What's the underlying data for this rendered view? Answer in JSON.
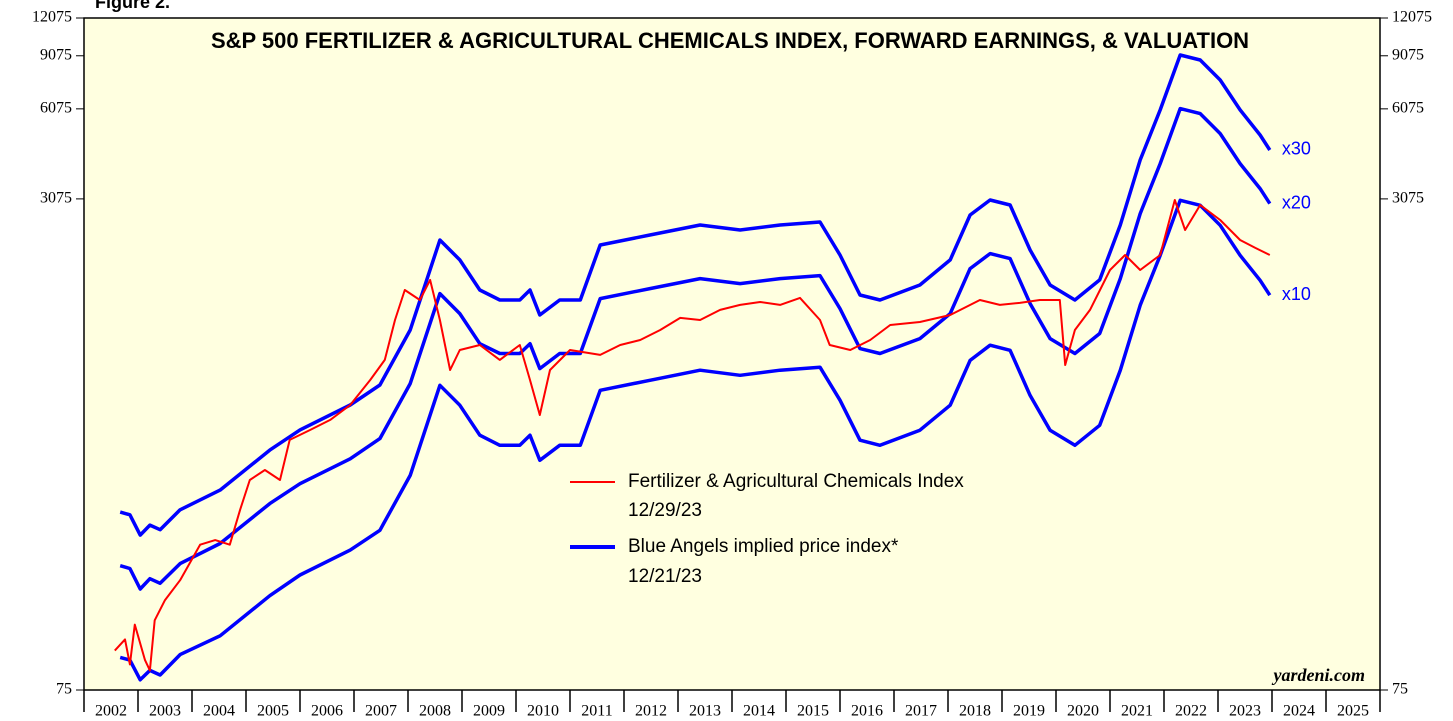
{
  "chart_data": {
    "type": "line",
    "figure_label": "Figure 2.",
    "title": "S&P 500 FERTILIZER & AGRICULTURAL CHEMICALS INDEX, FORWARD EARNINGS, & VALUATION",
    "source": "yardeni.com",
    "log_scale": true,
    "ylim": [
      75,
      12075
    ],
    "yticks": [
      75,
      3075,
      6075,
      9075,
      12075
    ],
    "xlim": [
      2002,
      2026
    ],
    "xticks": [
      2002,
      2003,
      2004,
      2005,
      2006,
      2007,
      2008,
      2009,
      2010,
      2011,
      2012,
      2013,
      2014,
      2015,
      2016,
      2017,
      2018,
      2019,
      2020,
      2021,
      2022,
      2023,
      2024,
      2025,
      2026
    ],
    "categories": [
      "2002",
      "2003",
      "2004",
      "2005",
      "2006",
      "2007",
      "2008",
      "2009",
      "2010",
      "2011",
      "2012",
      "2013",
      "2014",
      "2015",
      "2016",
      "2017",
      "2018",
      "2019",
      "2020",
      "2021",
      "2022",
      "2023",
      "2024",
      "2025"
    ],
    "series": [
      {
        "name": "Fertilizer & Agricultural Chemicals Index",
        "date": "12/29/23",
        "color": "#ff0000",
        "x": [
          2002.57,
          2002.76,
          2002.85,
          2002.94,
          2003.13,
          2003.22,
          2003.31,
          2003.5,
          2003.78,
          2004.15,
          2004.43,
          2004.7,
          2004.89,
          2005.07,
          2005.35,
          2005.63,
          2005.81,
          2006.19,
          2006.56,
          2006.93,
          2007.3,
          2007.57,
          2007.76,
          2007.94,
          2008.22,
          2008.41,
          2008.59,
          2008.78,
          2008.96,
          2009.33,
          2009.7,
          2010.07,
          2010.26,
          2010.44,
          2010.63,
          2011.0,
          2011.56,
          2011.93,
          2012.3,
          2012.67,
          2013.04,
          2013.41,
          2013.78,
          2014.15,
          2014.52,
          2014.89,
          2015.26,
          2015.63,
          2015.81,
          2016.19,
          2016.56,
          2016.93,
          2017.48,
          2018.04,
          2018.59,
          2018.96,
          2019.33,
          2019.7,
          2020.07,
          2020.17,
          2020.35,
          2020.63,
          2021.0,
          2021.28,
          2021.56,
          2021.93,
          2022.2,
          2022.39,
          2022.67,
          2023.04,
          2023.41,
          2023.69,
          2023.96
        ],
        "values": [
          101,
          110,
          91,
          123,
          94,
          87,
          127,
          148,
          172,
          225,
          233,
          225,
          293,
          367,
          396,
          367,
          497,
          536,
          578,
          647,
          782,
          910,
          1231,
          1544,
          1432,
          1666,
          1231,
          843,
          981,
          1019,
          910,
          1019,
          782,
          600,
          843,
          981,
          945,
          1019,
          1058,
          1141,
          1250,
          1231,
          1328,
          1379,
          1410,
          1379,
          1454,
          1231,
          1019,
          981,
          1058,
          1185,
          1212,
          1278,
          1432,
          1379,
          1400,
          1432,
          1432,
          876,
          1141,
          1328,
          1796,
          2012,
          1796,
          2012,
          3050,
          2431,
          2937,
          2622,
          2254,
          2122,
          2012
        ]
      }
    ],
    "blue_angels": {
      "name": "Blue Angels implied price index*",
      "date": "12/21/23",
      "color": "#0000ff",
      "x": [
        2002.67,
        2002.85,
        2003.04,
        2003.22,
        2003.41,
        2003.78,
        2004.52,
        2005.44,
        2006.0,
        2006.93,
        2007.48,
        2008.04,
        2008.59,
        2008.96,
        2009.33,
        2009.7,
        2010.07,
        2010.26,
        2010.44,
        2010.81,
        2011.19,
        2011.56,
        2012.48,
        2013.41,
        2014.15,
        2014.89,
        2015.63,
        2016.0,
        2016.37,
        2016.74,
        2017.48,
        2018.04,
        2018.41,
        2018.78,
        2019.15,
        2019.52,
        2019.89,
        2020.35,
        2020.81,
        2021.19,
        2021.56,
        2021.93,
        2022.3,
        2022.67,
        2023.04,
        2023.41,
        2023.78,
        2023.96
      ],
      "bands": [
        {
          "label": "x30",
          "values": [
            288,
            282,
            242,
            261,
            252,
            293,
            340,
            460,
            536,
            647,
            753,
            1141,
            2254,
            1938,
            1544,
            1432,
            1432,
            1544,
            1278,
            1432,
            1432,
            2170,
            2341,
            2525,
            2431,
            2525,
            2582,
            2012,
            1487,
            1432,
            1604,
            1938,
            2722,
            3050,
            2937,
            2089,
            1604,
            1432,
            1666,
            2525,
            4128,
            6025,
            9128,
            8790,
            7558,
            6025,
            4986,
            4451
          ]
        },
        {
          "label": "x20",
          "values": [
            192,
            188,
            161,
            174,
            168,
            195,
            227,
            307,
            357,
            431,
            502,
            761,
            1503,
            1292,
            1029,
            955,
            955,
            1029,
            852,
            955,
            955,
            1447,
            1561,
            1683,
            1621,
            1683,
            1721,
            1341,
            991,
            955,
            1069,
            1292,
            1815,
            2033,
            1958,
            1393,
            1069,
            955,
            1111,
            1683,
            2752,
            4017,
            6085,
            5860,
            5039,
            4017,
            3324,
            2967
          ]
        },
        {
          "label": "x10",
          "values": [
            96,
            94,
            81,
            87,
            84,
            98,
            113,
            153,
            179,
            216,
            251,
            380,
            751,
            646,
            515,
            477,
            477,
            515,
            426,
            477,
            477,
            723,
            780,
            842,
            810,
            842,
            861,
            671,
            496,
            477,
            535,
            646,
            907,
            1017,
            979,
            696,
            535,
            477,
            555,
            842,
            1376,
            2008,
            3043,
            2930,
            2519,
            2008,
            1662,
            1484
          ]
        }
      ]
    }
  }
}
